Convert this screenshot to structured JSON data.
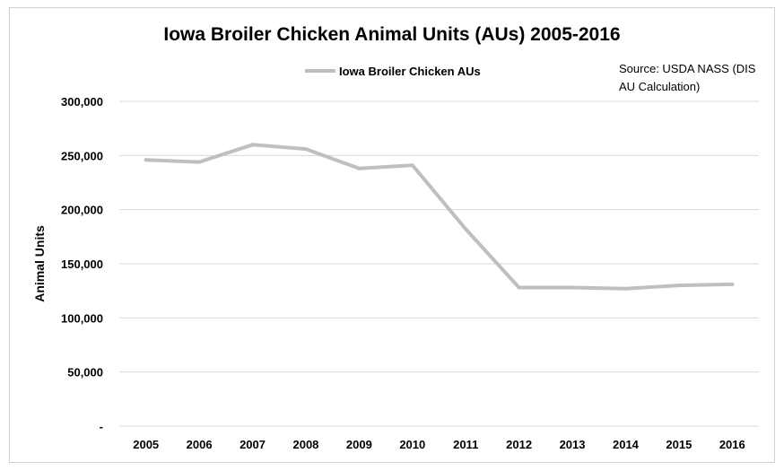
{
  "chart_data": {
    "type": "line",
    "title": "Iowa Broiler Chicken Animal Units (AUs) 2005-2016",
    "xlabel": "",
    "ylabel": "Animal Units",
    "annotation_line1": "Source: USDA NASS (DIS",
    "annotation_line2": "AU Calculation)",
    "categories": [
      "2005",
      "2006",
      "2007",
      "2008",
      "2009",
      "2010",
      "2011",
      "2012",
      "2013",
      "2014",
      "2015",
      "2016"
    ],
    "series": [
      {
        "name": "Iowa Broiler Chicken AUs",
        "color": "#bfbfbf",
        "values": [
          246000,
          244000,
          260000,
          256000,
          238000,
          241000,
          182000,
          128000,
          128000,
          127000,
          130000,
          131000
        ]
      }
    ],
    "ylim": [
      0,
      300000
    ],
    "yticks": [
      {
        "value": 0,
        "label": "-"
      },
      {
        "value": 50000,
        "label": "50,000"
      },
      {
        "value": 100000,
        "label": "100,000"
      },
      {
        "value": 150000,
        "label": "150,000"
      },
      {
        "value": 200000,
        "label": "200,000"
      },
      {
        "value": 250000,
        "label": "250,000"
      },
      {
        "value": 300000,
        "label": "300,000"
      }
    ],
    "grid": true,
    "legend_position": "top-center"
  }
}
